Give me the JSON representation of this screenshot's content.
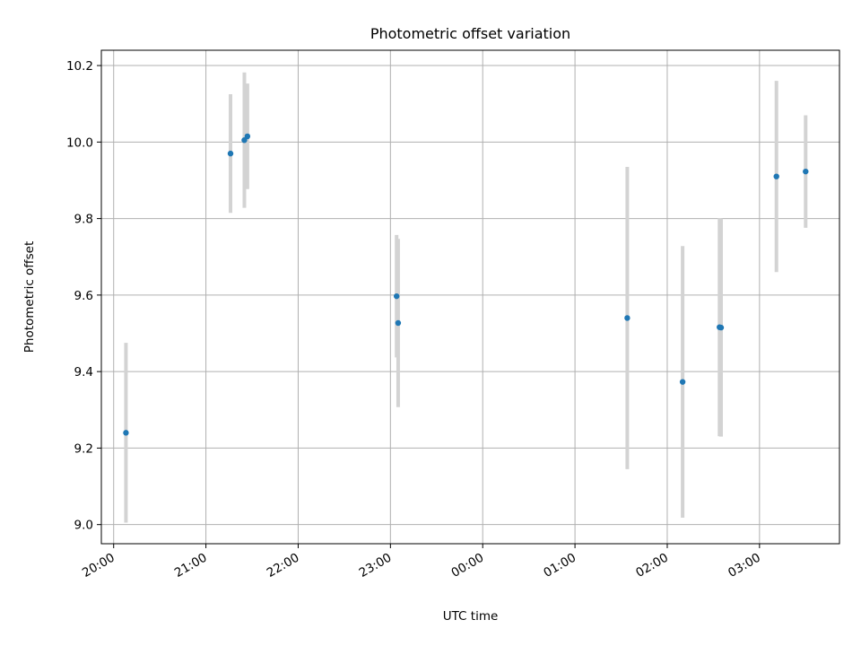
{
  "chart_data": {
    "type": "scatter",
    "title": "Photometric offset variation",
    "xlabel": "UTC time",
    "ylabel": "Photometric offset",
    "x_unit": "hours",
    "xlim": [
      "19:52",
      "03:52"
    ],
    "ylim": [
      8.95,
      10.24
    ],
    "x_ticks": [
      "20:00",
      "21:00",
      "22:00",
      "23:00",
      "00:00",
      "01:00",
      "02:00",
      "03:00"
    ],
    "y_ticks": [
      "9.0",
      "9.2",
      "9.4",
      "9.6",
      "9.8",
      "10.0",
      "10.2"
    ],
    "grid": true,
    "marker_color": "#1f77b4",
    "errorbar_color": "#d3d3d3",
    "series": [
      {
        "points": [
          {
            "x": "20:08",
            "y": 9.24,
            "err": 0.235
          },
          {
            "x": "21:16",
            "y": 9.97,
            "err": 0.155
          },
          {
            "x": "21:25",
            "y": 10.005,
            "err": 0.177
          },
          {
            "x": "21:27",
            "y": 10.015,
            "err": 0.138
          },
          {
            "x": "23:04",
            "y": 9.597,
            "err": 0.16
          },
          {
            "x": "23:05",
            "y": 9.527,
            "err": 0.22
          },
          {
            "x": "01:34",
            "y": 9.54,
            "err": 0.395
          },
          {
            "x": "02:10",
            "y": 9.373,
            "err": 0.355
          },
          {
            "x": "02:34",
            "y": 9.516,
            "err": 0.285
          },
          {
            "x": "02:35",
            "y": 9.515,
            "err": 0.285
          },
          {
            "x": "03:11",
            "y": 9.91,
            "err": 0.25
          },
          {
            "x": "03:30",
            "y": 9.923,
            "err": 0.147
          }
        ]
      }
    ]
  }
}
